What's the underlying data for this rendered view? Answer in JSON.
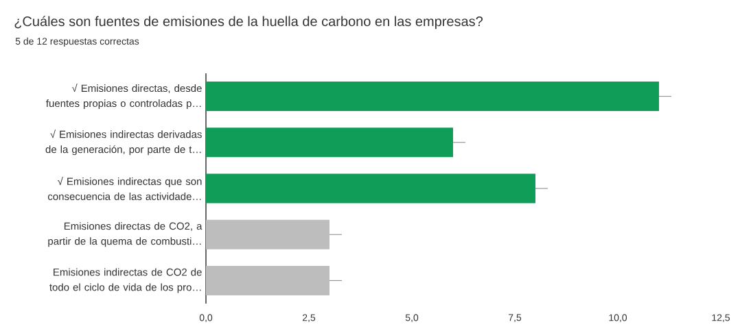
{
  "chart_data": {
    "type": "bar",
    "orientation": "horizontal",
    "title": "¿Cuáles son fuentes de emisiones de la huella de carbono en las empresas?",
    "subtitle": "5 de 12 respuestas correctas",
    "categories": [
      "√ Emisiones directas, desde fuentes propias o controladas p…",
      "√ Emisiones indirectas derivadas de la generación, por parte de t…",
      "√ Emisiones indirectas que son consecuencia de las actividade…",
      "Emisiones directas de CO2, a partir de la quema de combusti…",
      "Emisiones indirectas de CO2 de todo el ciclo de vida de los pro…"
    ],
    "values": [
      11,
      6,
      8,
      3,
      3
    ],
    "colors": [
      "#0f9d58",
      "#0f9d58",
      "#0f9d58",
      "#bdbdbd",
      "#bdbdbd"
    ],
    "errors": [
      [
        11,
        11.3
      ],
      [
        6,
        6.3
      ],
      [
        8,
        8.3
      ],
      [
        3,
        3.3
      ],
      [
        3,
        3.3
      ]
    ],
    "xlim": [
      0,
      12.5
    ],
    "xticks": [
      {
        "value": 0,
        "label": "0,0"
      },
      {
        "value": 2.5,
        "label": "2,5"
      },
      {
        "value": 5,
        "label": "5,0"
      },
      {
        "value": 7.5,
        "label": "7,5"
      },
      {
        "value": 10,
        "label": "10,0"
      },
      {
        "value": 12.5,
        "label": "12,5"
      }
    ]
  }
}
